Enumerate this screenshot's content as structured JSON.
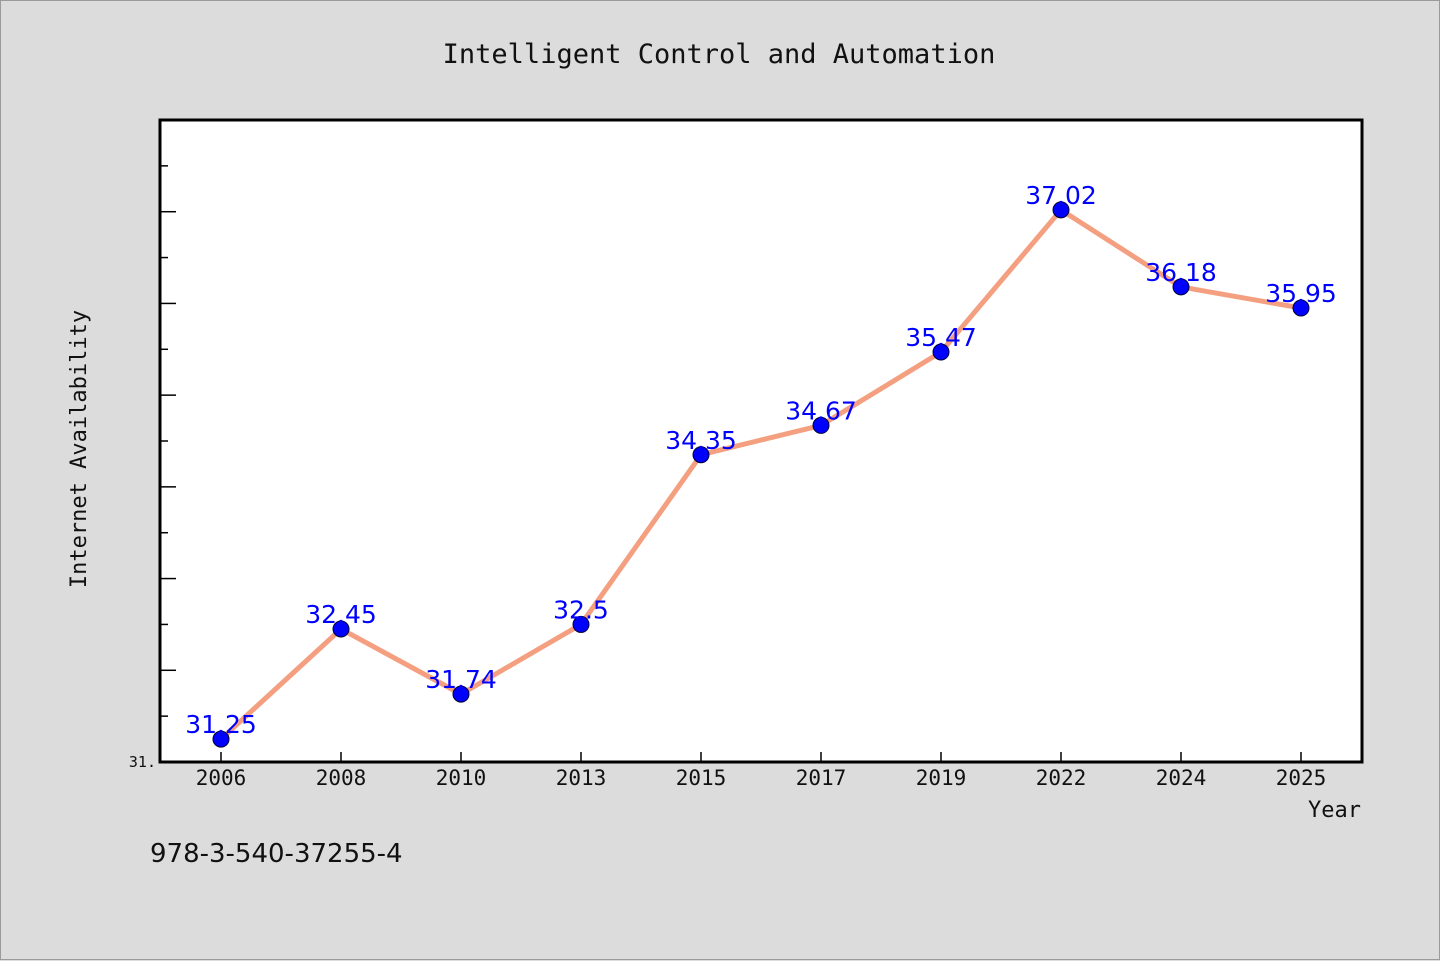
{
  "chart_data": {
    "type": "line",
    "title": "Intelligent Control and Automation",
    "xlabel": "Year",
    "ylabel": "Internet Availability",
    "categories": [
      "2006",
      "2008",
      "2010",
      "2013",
      "2015",
      "2017",
      "2019",
      "2022",
      "2024",
      "2025"
    ],
    "series": [
      {
        "values": [
          31.25,
          32.45,
          31.74,
          32.5,
          34.35,
          34.67,
          35.47,
          37.02,
          36.18,
          35.95
        ],
        "data_labels": [
          "31.25",
          "32.45",
          "31.74",
          "32.5",
          "34.35",
          "34.67",
          "35.47",
          "37.02",
          "36.18",
          "35.95"
        ]
      }
    ],
    "ylim": [
      31.0,
      38.0
    ],
    "ytick_labels": [
      "31."
    ],
    "grid": false,
    "legend": "none",
    "colors": {
      "line": "#f4a080",
      "marker": "#0000ff",
      "data_label": "#0000ff",
      "plot_background": "#ffffff",
      "figure_background": "#dcdcdc"
    }
  },
  "footer_text": "978-3-540-37255-4"
}
